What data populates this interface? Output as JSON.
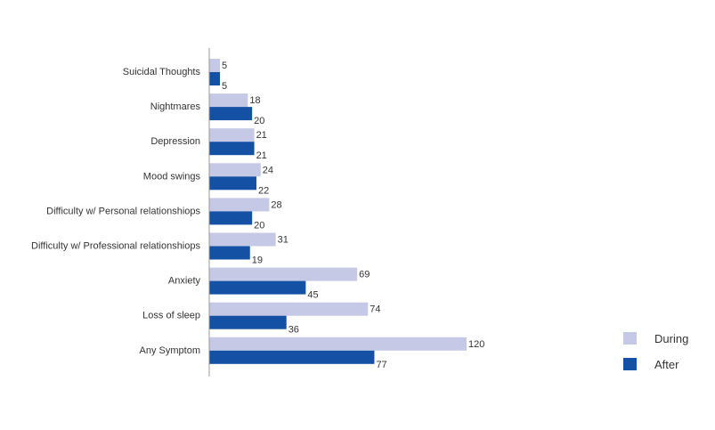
{
  "chart_data": {
    "type": "bar",
    "orientation": "horizontal",
    "categories": [
      "Suicidal Thoughts",
      "Nightmares",
      "Depression",
      "Mood swings",
      "Difficulty w/ Personal relationshiops",
      "Difficulty w/ Professional relationshiops",
      "Anxiety",
      "Loss of sleep",
      "Any Symptom"
    ],
    "series": [
      {
        "name": "During",
        "color": "#c5c9e6",
        "values": [
          5,
          18,
          21,
          24,
          28,
          31,
          69,
          74,
          120
        ]
      },
      {
        "name": "After",
        "color": "#1450a3",
        "values": [
          5,
          20,
          21,
          22,
          20,
          19,
          45,
          36,
          77
        ]
      }
    ],
    "title": "",
    "xlabel": "",
    "ylabel": "",
    "xlim": [
      0,
      120
    ],
    "grid": false,
    "legend_position": "right"
  }
}
